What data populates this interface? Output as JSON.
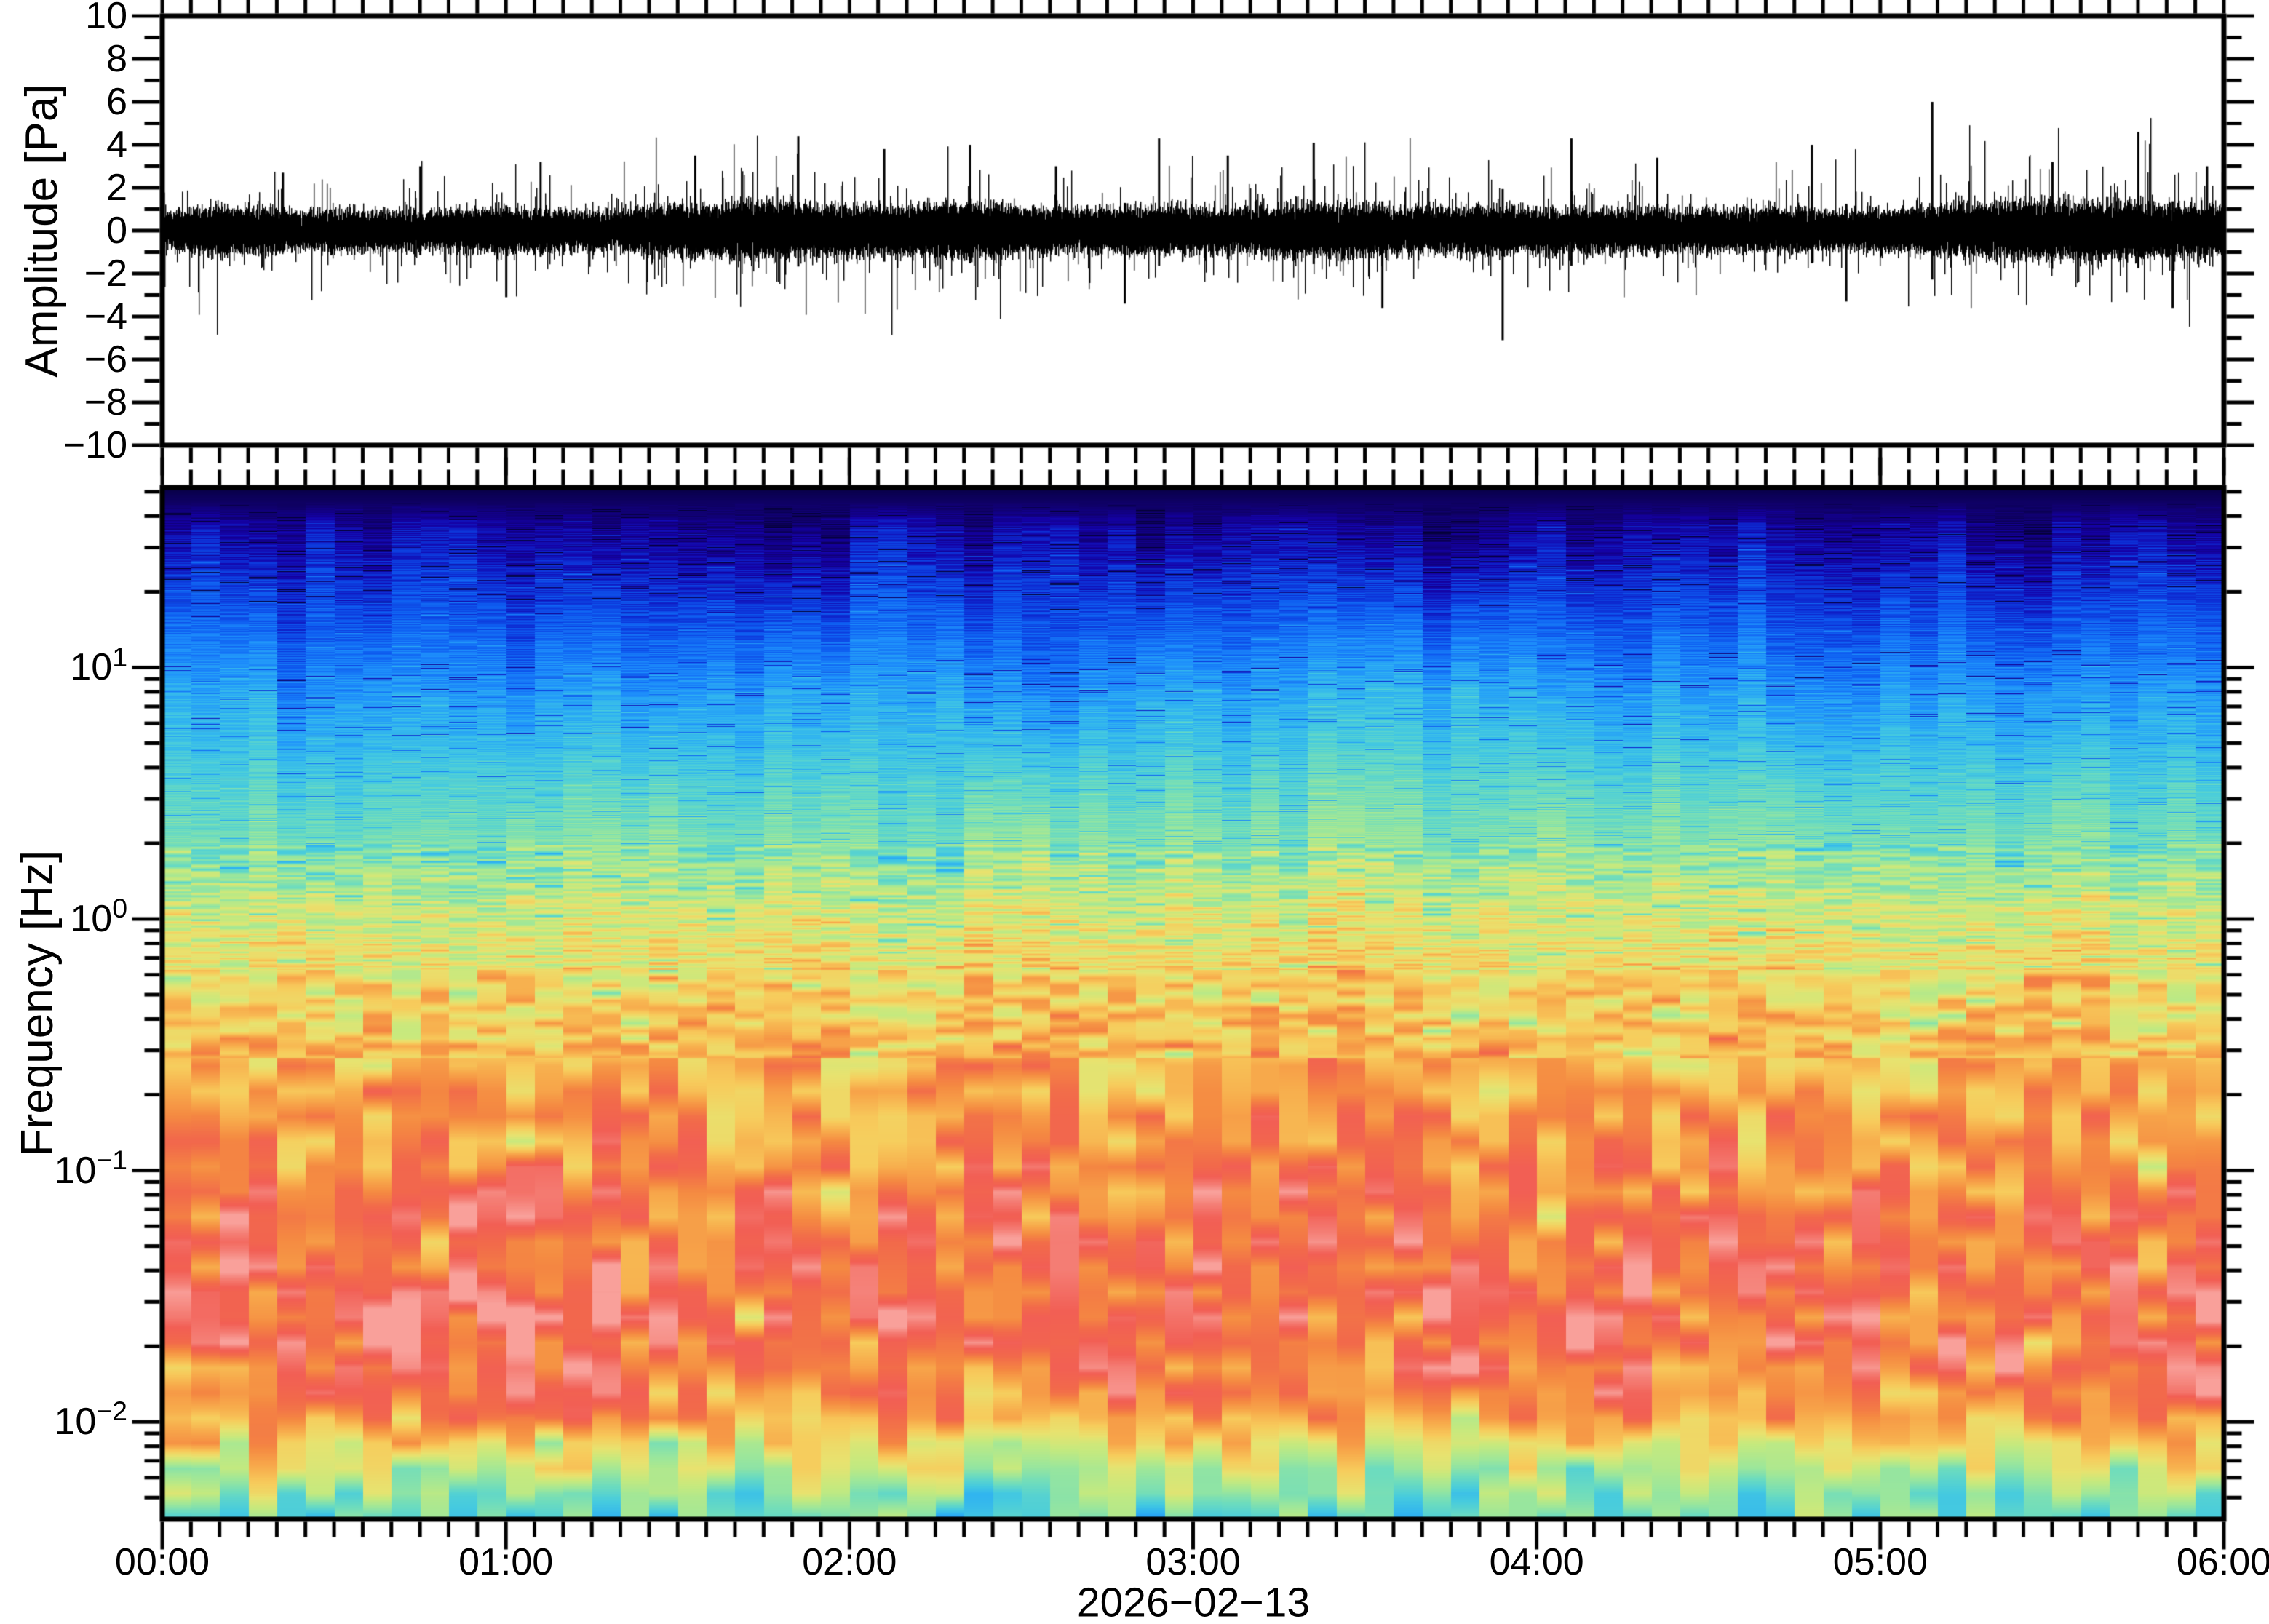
{
  "figure": {
    "background": "#ffffff",
    "frame_color": "#000000",
    "seed": 1234
  },
  "waveform_panel": {
    "ylabel": "Amplitude [Pa]",
    "trace_color": "#000000",
    "yticks": [
      {
        "value": 10,
        "label": "10"
      },
      {
        "value": 8,
        "label": "8"
      },
      {
        "value": 6,
        "label": "6"
      },
      {
        "value": 4,
        "label": "4"
      },
      {
        "value": 2,
        "label": "2"
      },
      {
        "value": 0,
        "label": "0"
      },
      {
        "value": -2,
        "label": "−2"
      },
      {
        "value": -4,
        "label": "−4"
      },
      {
        "value": -6,
        "label": "−6"
      },
      {
        "value": -8,
        "label": "−8"
      },
      {
        "value": -10,
        "label": "−10"
      }
    ]
  },
  "spectrogram_panel": {
    "ylabel": "Frequency [Hz]",
    "mantissa_base": "10",
    "ytick_decades": [
      {
        "exponent_label": "1",
        "value": 10
      },
      {
        "exponent_label": "0",
        "value": 1
      },
      {
        "exponent_label": "−1",
        "value": 0.1
      },
      {
        "exponent_label": "−2",
        "value": 0.01
      }
    ]
  },
  "time_axis": {
    "tick_labels": [
      "00:00",
      "01:00",
      "02:00",
      "03:00",
      "04:00",
      "05:00",
      "06:00"
    ],
    "minor_tick_minutes": 5,
    "date_label": "2026−02−13"
  },
  "chart_data": [
    {
      "type": "line",
      "name": "infrasound-waveform",
      "title": "",
      "xlabel": "2026-02-13",
      "ylabel": "Amplitude [Pa]",
      "ylim": [
        -10,
        10
      ],
      "ytick_major_step": 2,
      "ytick_minor_step": 1,
      "xlim_hours": [
        0,
        6
      ],
      "xtick_major_hours": 1,
      "xtick_minor_minutes": 5,
      "grid": false,
      "series": [
        {
          "name": "pressure trace",
          "color": "#000000",
          "baseline_pa": 0,
          "noise_sigma_pa": 0.45,
          "typical_band_pa": 1.0,
          "notable_spikes": [
            {
              "hour": 0.35,
              "amplitude_pa": 2.7
            },
            {
              "hour": 0.75,
              "amplitude_pa": 3.0
            },
            {
              "hour": 1.0,
              "amplitude_pa": -3.1
            },
            {
              "hour": 1.1,
              "amplitude_pa": 3.2
            },
            {
              "hour": 1.55,
              "amplitude_pa": 3.5
            },
            {
              "hour": 1.85,
              "amplitude_pa": 4.4
            },
            {
              "hour": 2.1,
              "amplitude_pa": 3.8
            },
            {
              "hour": 2.35,
              "amplitude_pa": 4.0
            },
            {
              "hour": 2.6,
              "amplitude_pa": 3.0
            },
            {
              "hour": 2.8,
              "amplitude_pa": -3.4
            },
            {
              "hour": 2.9,
              "amplitude_pa": 4.3
            },
            {
              "hour": 3.1,
              "amplitude_pa": 3.5
            },
            {
              "hour": 3.35,
              "amplitude_pa": 4.1
            },
            {
              "hour": 3.55,
              "amplitude_pa": -3.6
            },
            {
              "hour": 3.9,
              "amplitude_pa": -5.1
            },
            {
              "hour": 4.1,
              "amplitude_pa": 4.3
            },
            {
              "hour": 4.35,
              "amplitude_pa": 3.4
            },
            {
              "hour": 4.8,
              "amplitude_pa": 4.0
            },
            {
              "hour": 4.9,
              "amplitude_pa": -3.3
            },
            {
              "hour": 5.15,
              "amplitude_pa": 6.0
            },
            {
              "hour": 5.5,
              "amplitude_pa": 3.2
            },
            {
              "hour": 5.75,
              "amplitude_pa": 4.6
            },
            {
              "hour": 5.85,
              "amplitude_pa": -3.6
            },
            {
              "hour": 5.95,
              "amplitude_pa": 3.0
            }
          ]
        }
      ]
    },
    {
      "type": "heatmap",
      "name": "spectrogram",
      "title": "",
      "xlabel": "2026-02-13",
      "ylabel": "Frequency [Hz]",
      "yscale": "log",
      "ylim_hz": [
        0.0041,
        52
      ],
      "xlim_hours": [
        0,
        6
      ],
      "time_bin_minutes": 5,
      "grid": false,
      "legend": "none",
      "colormap_stops": [
        {
          "t": 0.0,
          "color": "#030031"
        },
        {
          "t": 0.04,
          "color": "#10006a"
        },
        {
          "t": 0.09,
          "color": "#1502a8"
        },
        {
          "t": 0.14,
          "color": "#0d2fd6"
        },
        {
          "t": 0.19,
          "color": "#0f5ff2"
        },
        {
          "t": 0.25,
          "color": "#1e8ffc"
        },
        {
          "t": 0.31,
          "color": "#2fb2f2"
        },
        {
          "t": 0.37,
          "color": "#46cbe0"
        },
        {
          "t": 0.44,
          "color": "#6cdcc0"
        },
        {
          "t": 0.51,
          "color": "#9ce79c"
        },
        {
          "t": 0.58,
          "color": "#c6ea7f"
        },
        {
          "t": 0.64,
          "color": "#e8e370"
        },
        {
          "t": 0.7,
          "color": "#f7cd5d"
        },
        {
          "t": 0.76,
          "color": "#f8ab4c"
        },
        {
          "t": 0.82,
          "color": "#f58a42"
        },
        {
          "t": 0.88,
          "color": "#f26a4b"
        },
        {
          "t": 0.93,
          "color": "#f25f55"
        },
        {
          "t": 0.97,
          "color": "#f57f76"
        },
        {
          "t": 1.0,
          "color": "#f9a09a"
        }
      ],
      "band_power_profile": [
        {
          "log10_hz": 1.716,
          "t": 0.015
        },
        {
          "log10_hz": 1.62,
          "t": 0.05
        },
        {
          "log10_hz": 1.5,
          "t": 0.09
        },
        {
          "log10_hz": 1.3,
          "t": 0.145
        },
        {
          "log10_hz": 1.1,
          "t": 0.2
        },
        {
          "log10_hz": 1.0,
          "t": 0.235
        },
        {
          "log10_hz": 0.85,
          "t": 0.285
        },
        {
          "log10_hz": 0.7,
          "t": 0.33
        },
        {
          "log10_hz": 0.55,
          "t": 0.385
        },
        {
          "log10_hz": 0.4,
          "t": 0.43
        },
        {
          "log10_hz": 0.25,
          "t": 0.48
        },
        {
          "log10_hz": 0.1,
          "t": 0.555
        },
        {
          "log10_hz": 0.0,
          "t": 0.6
        },
        {
          "log10_hz": -0.15,
          "t": 0.645
        },
        {
          "log10_hz": -0.3,
          "t": 0.685
        },
        {
          "log10_hz": -0.45,
          "t": 0.72
        },
        {
          "log10_hz": -0.6,
          "t": 0.75
        },
        {
          "log10_hz": -0.8,
          "t": 0.79
        },
        {
          "log10_hz": -1.0,
          "t": 0.825
        },
        {
          "log10_hz": -1.2,
          "t": 0.86
        },
        {
          "log10_hz": -1.4,
          "t": 0.885
        },
        {
          "log10_hz": -1.55,
          "t": 0.89
        },
        {
          "log10_hz": -1.7,
          "t": 0.885
        },
        {
          "log10_hz": -1.85,
          "t": 0.845
        },
        {
          "log10_hz": -1.95,
          "t": 0.8
        },
        {
          "log10_hz": -2.05,
          "t": 0.72
        },
        {
          "log10_hz": -2.15,
          "t": 0.62
        },
        {
          "log10_hz": -2.22,
          "t": 0.55
        },
        {
          "log10_hz": -2.3,
          "t": 0.48
        },
        {
          "log10_hz": -2.387,
          "t": 0.44
        }
      ]
    }
  ]
}
